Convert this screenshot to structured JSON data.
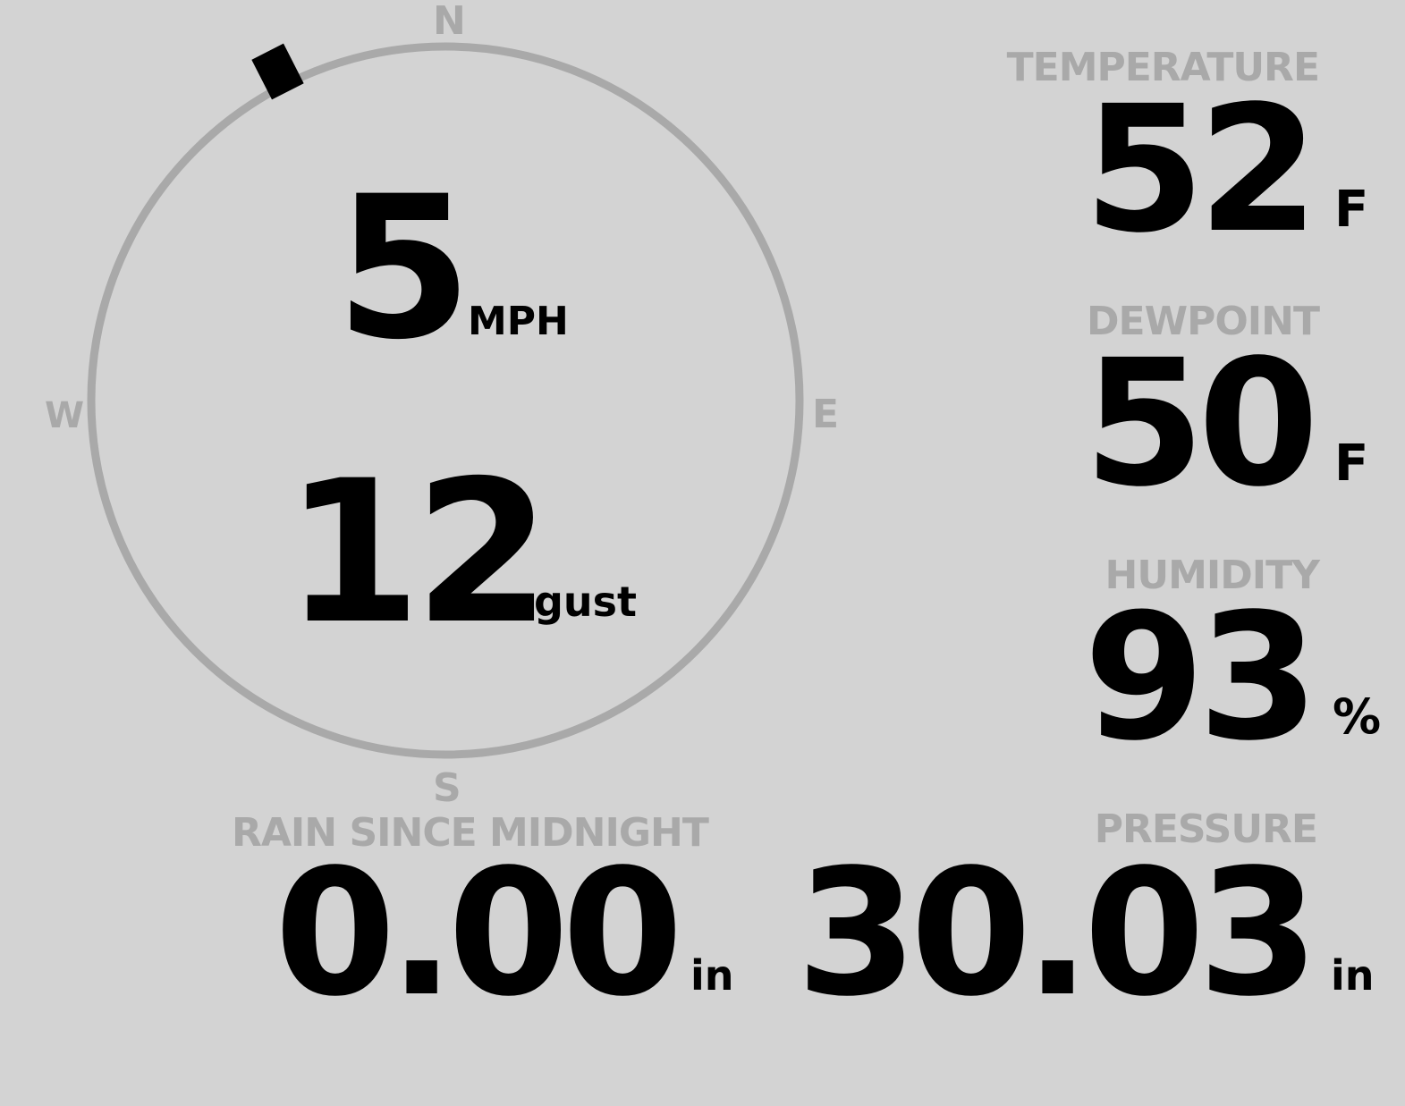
{
  "wind": {
    "speed": "5",
    "speed_unit": "MPH",
    "gust": "12",
    "gust_label": "gust",
    "direction_degrees": 333,
    "cardinals": {
      "n": "N",
      "e": "E",
      "s": "S",
      "w": "W"
    }
  },
  "temperature": {
    "label": "TEMPERATURE",
    "value": "52",
    "unit": "F"
  },
  "dewpoint": {
    "label": "DEWPOINT",
    "value": "50",
    "unit": "F"
  },
  "humidity": {
    "label": "HUMIDITY",
    "value": "93",
    "unit": "%"
  },
  "rain": {
    "label": "RAIN SINCE MIDNIGHT",
    "value": "0.00",
    "unit": "in"
  },
  "pressure": {
    "label": "PRESSURE",
    "value": "30.03",
    "unit": "in"
  },
  "colors": {
    "background": "#d3d3d3",
    "ring": "#a9a9a9",
    "value": "#000000",
    "label": "#a9a9a9"
  }
}
